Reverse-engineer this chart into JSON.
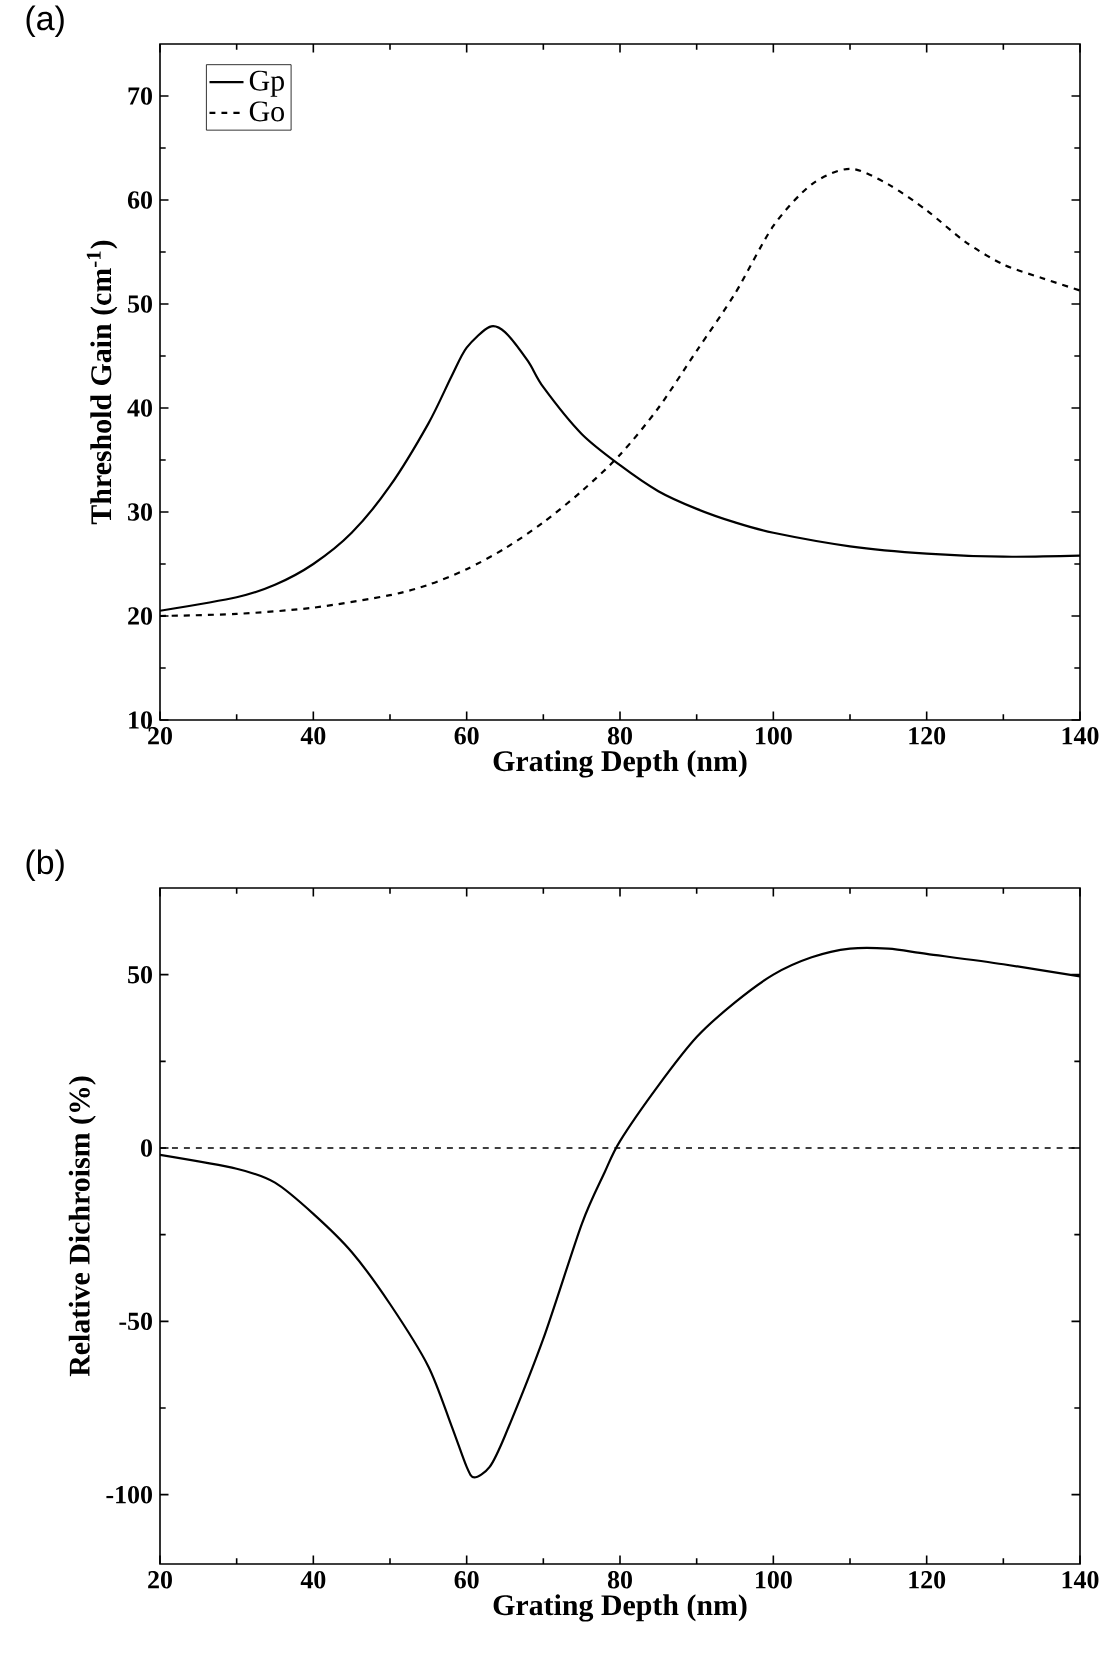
{
  "chart_data": [
    {
      "type": "line",
      "title": "(a)",
      "xlabel": "Grating Depth (nm)",
      "ylabel": "Threshold Gain (cm$^{-1}$)",
      "xlim": [
        20,
        140
      ],
      "ylim": [
        10,
        75
      ],
      "xticks": [
        20,
        40,
        60,
        80,
        100,
        120,
        140
      ],
      "yticks": [
        10,
        20,
        30,
        40,
        50,
        60,
        70
      ],
      "legend": "top left",
      "series": [
        {
          "name": "Gp",
          "color": "#000000",
          "line_style": "solid",
          "x": [
            20,
            30,
            35,
            40,
            45,
            50,
            55,
            58,
            60,
            63,
            65,
            68,
            70,
            75,
            80,
            85,
            90,
            95,
            100,
            110,
            120,
            130,
            140
          ],
          "values": [
            20.5,
            21.8,
            23,
            25,
            28,
            32.5,
            38.5,
            43,
            45.8,
            47.8,
            47.3,
            44.5,
            42,
            37.5,
            34.5,
            32,
            30.3,
            29,
            28,
            26.7,
            26,
            25.7,
            25.8
          ]
        },
        {
          "name": "Go",
          "color": "#000000",
          "line_style": "dashed",
          "x": [
            20,
            30,
            40,
            50,
            55,
            60,
            65,
            70,
            75,
            80,
            85,
            90,
            95,
            100,
            105,
            110,
            115,
            120,
            125,
            130,
            135,
            140
          ],
          "values": [
            20,
            20.2,
            20.8,
            22,
            23,
            24.5,
            26.5,
            29,
            32,
            35.5,
            40,
            45.5,
            51,
            57.5,
            61.5,
            63,
            61.5,
            59,
            56,
            53.8,
            52.5,
            51.3
          ]
        }
      ]
    },
    {
      "type": "line",
      "title": "(b)",
      "xlabel": "Grating Depth (nm)",
      "ylabel": "Relative Dichroism (%)",
      "xlim": [
        20,
        140
      ],
      "ylim": [
        -120,
        75
      ],
      "xticks": [
        20,
        40,
        60,
        80,
        100,
        120,
        140
      ],
      "yticks": [
        -100,
        -50,
        0,
        50
      ],
      "ref_lines": [
        {
          "axis": "y",
          "value": 0,
          "color": "#000000",
          "line_style": "dashed"
        }
      ],
      "series": [
        {
          "color": "#000000",
          "line_style": "solid",
          "x": [
            20,
            30,
            35,
            40,
            45,
            50,
            55,
            58,
            60,
            61,
            63,
            65,
            70,
            75,
            78,
            80,
            85,
            90,
            95,
            100,
            105,
            110,
            115,
            120,
            130,
            140
          ],
          "values": [
            -2,
            -6,
            -10,
            -19,
            -30,
            -45,
            -63,
            -80,
            -92,
            -95,
            -92,
            -83,
            -55,
            -22,
            -7,
            2,
            18,
            32,
            42,
            50,
            55,
            57.5,
            57.5,
            56,
            53,
            49.5
          ]
        }
      ]
    }
  ]
}
